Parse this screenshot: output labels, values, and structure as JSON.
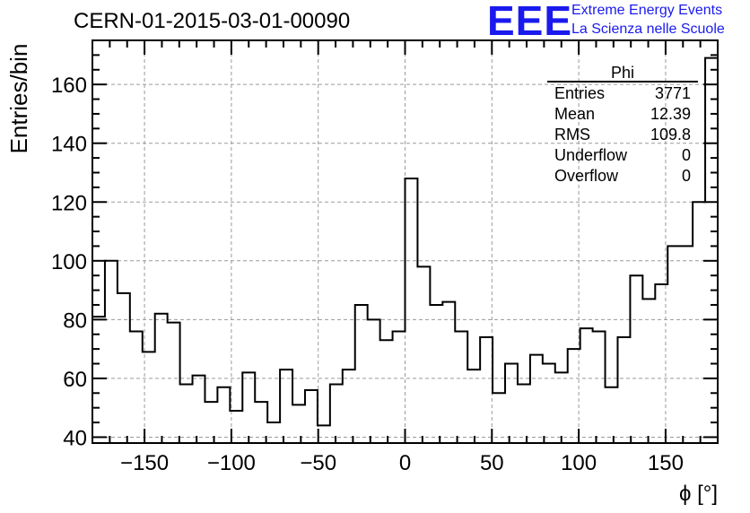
{
  "header": {
    "run_title": "CERN-01-2015-03-01-00090",
    "logo_text": "EEE",
    "logo_line1": "Extreme Energy Events",
    "logo_line2": "La Scienza nelle Scuole",
    "logo_color": "#1a1aee"
  },
  "stats_box": {
    "title": "Phi",
    "rows": [
      {
        "label": "Entries",
        "value": "3771"
      },
      {
        "label": "Mean",
        "value": "12.39"
      },
      {
        "label": "RMS",
        "value": "109.8"
      },
      {
        "label": "Underflow",
        "value": "0"
      },
      {
        "label": "Overflow",
        "value": "0"
      }
    ]
  },
  "chart_data": {
    "type": "histogram",
    "xlabel": "ϕ [°]",
    "ylabel": "Entries/bin",
    "xlim": [
      -180,
      180
    ],
    "ylim": [
      38,
      175
    ],
    "bin_width": 7.2,
    "x_ticks": [
      -150,
      -100,
      -50,
      0,
      50,
      100,
      150
    ],
    "x_tick_labels": [
      "−150",
      "−100",
      "−50",
      "0",
      "50",
      "100",
      "150"
    ],
    "y_ticks": [
      40,
      60,
      80,
      100,
      120,
      140,
      160
    ],
    "y_tick_labels": [
      "40",
      "60",
      "80",
      "100",
      "120",
      "140",
      "160"
    ],
    "grid": true,
    "legend": "none",
    "values": [
      81,
      100,
      89,
      76,
      69,
      82,
      79,
      58,
      61,
      52,
      57,
      49,
      62,
      52,
      45,
      63,
      51,
      56,
      44,
      58,
      63,
      85,
      80,
      73,
      76,
      128,
      98,
      85,
      86,
      76,
      63,
      74,
      55,
      65,
      58,
      68,
      65,
      62,
      70,
      77,
      76,
      57,
      74,
      95,
      87,
      92,
      105,
      105,
      120,
      169
    ]
  }
}
